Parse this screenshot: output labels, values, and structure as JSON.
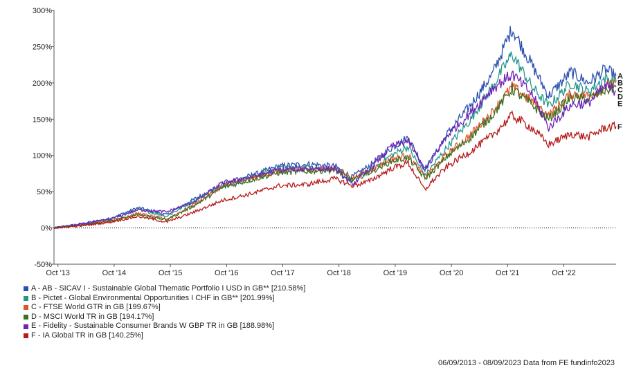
{
  "chart_data": {
    "type": "line",
    "y_ticks": [
      "300%",
      "250%",
      "200%",
      "150%",
      "100%",
      "50%",
      "0%",
      "-50%"
    ],
    "y_tick_values": [
      300,
      250,
      200,
      150,
      100,
      50,
      0,
      -50
    ],
    "ylim": [
      -50,
      300
    ],
    "x_ticks": [
      "Oct '13",
      "Oct '14",
      "Oct '15",
      "Oct '16",
      "Oct '17",
      "Oct '18",
      "Oct '19",
      "Oct '20",
      "Oct '21",
      "Oct '22"
    ],
    "x_tick_values": [
      0.07,
      1.07,
      2.07,
      3.07,
      4.07,
      5.07,
      6.07,
      7.07,
      8.07,
      9.07
    ],
    "xlim": [
      0,
      10.0
    ],
    "grid": "none",
    "zero_line": "dotted",
    "legend_placement": "bottom-left",
    "series": [
      {
        "id": "A",
        "name": "A - AB - SICAV I - Sustainable Global Thematic Portfolio I USD in GB** [210.58%]",
        "color": "#2b50b0",
        "points": [
          [
            0,
            0
          ],
          [
            0.5,
            6
          ],
          [
            1,
            13
          ],
          [
            1.5,
            28
          ],
          [
            2,
            18
          ],
          [
            2.5,
            40
          ],
          [
            3,
            60
          ],
          [
            3.5,
            72
          ],
          [
            4,
            85
          ],
          [
            4.5,
            88
          ],
          [
            5,
            85
          ],
          [
            5.3,
            70
          ],
          [
            5.6,
            85
          ],
          [
            6,
            110
          ],
          [
            6.3,
            125
          ],
          [
            6.6,
            82
          ],
          [
            6.7,
            92
          ],
          [
            7,
            130
          ],
          [
            7.4,
            168
          ],
          [
            7.8,
            212
          ],
          [
            8.15,
            275
          ],
          [
            8.5,
            225
          ],
          [
            8.8,
            182
          ],
          [
            9.2,
            215
          ],
          [
            9.5,
            200
          ],
          [
            9.8,
            218
          ],
          [
            10,
            210
          ]
        ]
      },
      {
        "id": "B",
        "name": "B - Pictet - Global Environmental Opportunities I CHF in GB** [201.99%]",
        "color": "#25968e",
        "points": [
          [
            0,
            0
          ],
          [
            0.5,
            5
          ],
          [
            1,
            12
          ],
          [
            1.5,
            26
          ],
          [
            2,
            16
          ],
          [
            2.5,
            38
          ],
          [
            3,
            58
          ],
          [
            3.5,
            70
          ],
          [
            4,
            82
          ],
          [
            4.5,
            84
          ],
          [
            5,
            80
          ],
          [
            5.3,
            64
          ],
          [
            5.6,
            78
          ],
          [
            6,
            100
          ],
          [
            6.3,
            112
          ],
          [
            6.6,
            72
          ],
          [
            6.7,
            82
          ],
          [
            7,
            112
          ],
          [
            7.4,
            148
          ],
          [
            7.8,
            195
          ],
          [
            8.15,
            240
          ],
          [
            8.5,
            195
          ],
          [
            8.8,
            168
          ],
          [
            9.2,
            200
          ],
          [
            9.5,
            188
          ],
          [
            9.8,
            206
          ],
          [
            10,
            202
          ]
        ]
      },
      {
        "id": "C",
        "name": "C - FTSE World GTR in GB [199.67%]",
        "color": "#e2532a",
        "points": [
          [
            0,
            0
          ],
          [
            0.5,
            4
          ],
          [
            1,
            10
          ],
          [
            1.5,
            20
          ],
          [
            2,
            12
          ],
          [
            2.5,
            32
          ],
          [
            3,
            58
          ],
          [
            3.5,
            68
          ],
          [
            4,
            78
          ],
          [
            4.5,
            80
          ],
          [
            5,
            82
          ],
          [
            5.3,
            68
          ],
          [
            5.6,
            78
          ],
          [
            6,
            95
          ],
          [
            6.3,
            100
          ],
          [
            6.6,
            70
          ],
          [
            6.7,
            78
          ],
          [
            7,
            102
          ],
          [
            7.4,
            128
          ],
          [
            7.8,
            160
          ],
          [
            8.15,
            195
          ],
          [
            8.5,
            175
          ],
          [
            8.8,
            155
          ],
          [
            9.2,
            185
          ],
          [
            9.5,
            182
          ],
          [
            9.8,
            195
          ],
          [
            10,
            200
          ]
        ]
      },
      {
        "id": "D",
        "name": "D - MSCI World TR in GB [194.17%]",
        "color": "#3a7022",
        "points": [
          [
            0,
            0
          ],
          [
            0.5,
            4
          ],
          [
            1,
            9
          ],
          [
            1.5,
            19
          ],
          [
            2,
            11
          ],
          [
            2.5,
            31
          ],
          [
            3,
            56
          ],
          [
            3.5,
            66
          ],
          [
            4,
            76
          ],
          [
            4.5,
            78
          ],
          [
            5,
            80
          ],
          [
            5.3,
            66
          ],
          [
            5.6,
            76
          ],
          [
            6,
            92
          ],
          [
            6.3,
            97
          ],
          [
            6.6,
            68
          ],
          [
            6.7,
            75
          ],
          [
            7,
            99
          ],
          [
            7.4,
            124
          ],
          [
            7.8,
            156
          ],
          [
            8.15,
            192
          ],
          [
            8.5,
            170
          ],
          [
            8.8,
            150
          ],
          [
            9.2,
            180
          ],
          [
            9.5,
            177
          ],
          [
            9.8,
            190
          ],
          [
            10,
            194
          ]
        ]
      },
      {
        "id": "E",
        "name": "E - Fidelity - Sustainable Consumer Brands W GBP TR in GB [188.98%]",
        "color": "#6f23b8",
        "points": [
          [
            0,
            0
          ],
          [
            0.5,
            5
          ],
          [
            1,
            12
          ],
          [
            1.5,
            25
          ],
          [
            2,
            22
          ],
          [
            2.5,
            36
          ],
          [
            3,
            62
          ],
          [
            3.5,
            70
          ],
          [
            4,
            80
          ],
          [
            4.5,
            82
          ],
          [
            5,
            82
          ],
          [
            5.3,
            60
          ],
          [
            5.6,
            80
          ],
          [
            6,
            112
          ],
          [
            6.3,
            120
          ],
          [
            6.6,
            80
          ],
          [
            6.7,
            92
          ],
          [
            7,
            128
          ],
          [
            7.4,
            158
          ],
          [
            7.8,
            192
          ],
          [
            8.15,
            212
          ],
          [
            8.5,
            185
          ],
          [
            8.8,
            138
          ],
          [
            9.2,
            170
          ],
          [
            9.5,
            172
          ],
          [
            9.8,
            195
          ],
          [
            10,
            189
          ]
        ]
      },
      {
        "id": "F",
        "name": "F - IA Global TR in GB [140.25%]",
        "color": "#b71a1a",
        "points": [
          [
            0,
            0
          ],
          [
            0.5,
            3
          ],
          [
            1,
            8
          ],
          [
            1.5,
            16
          ],
          [
            2,
            8
          ],
          [
            2.5,
            22
          ],
          [
            3,
            38
          ],
          [
            3.5,
            47
          ],
          [
            4,
            58
          ],
          [
            4.5,
            60
          ],
          [
            5,
            68
          ],
          [
            5.3,
            58
          ],
          [
            5.6,
            64
          ],
          [
            6,
            82
          ],
          [
            6.3,
            90
          ],
          [
            6.6,
            52
          ],
          [
            6.7,
            62
          ],
          [
            7,
            85
          ],
          [
            7.4,
            105
          ],
          [
            7.8,
            128
          ],
          [
            8.15,
            155
          ],
          [
            8.5,
            138
          ],
          [
            8.8,
            115
          ],
          [
            9.2,
            130
          ],
          [
            9.5,
            125
          ],
          [
            9.8,
            138
          ],
          [
            10,
            140
          ]
        ]
      }
    ]
  },
  "footer": "06/09/2013 - 08/09/2023 Data from FE fundinfo2023"
}
